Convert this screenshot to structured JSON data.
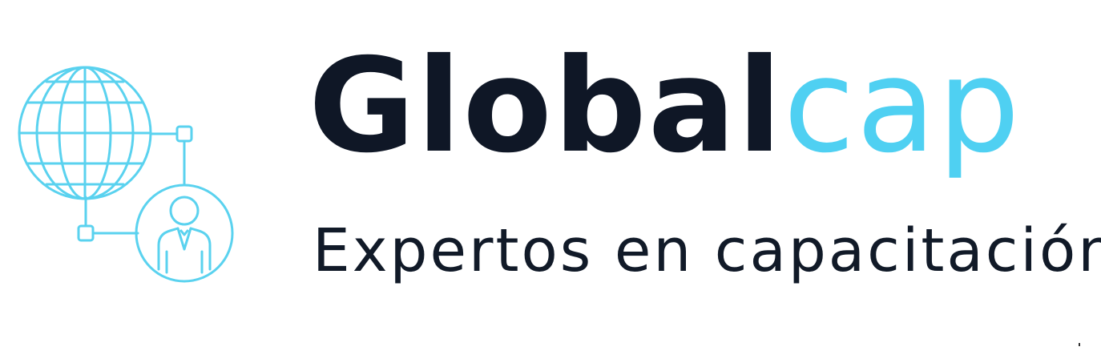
{
  "brand": {
    "name_dark": "Global",
    "name_blue": "cap",
    "tagline": "Expertos en capacitación"
  },
  "colors": {
    "accent": "#4fd0f2",
    "dark": "#0f1726",
    "background": "#ffffff"
  },
  "icons": {
    "emblem": "globe-network-person-icon"
  }
}
